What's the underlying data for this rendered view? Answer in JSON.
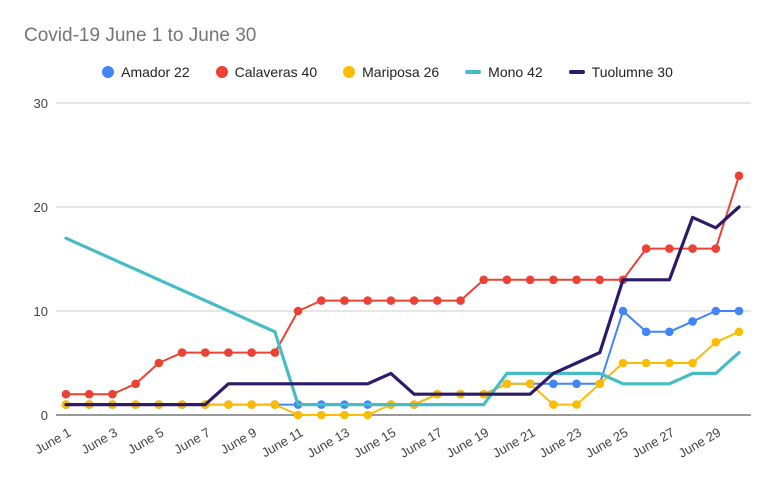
{
  "chart_data": {
    "type": "line",
    "title": "Covid-19 June 1 to June 30",
    "xlabel": "",
    "ylabel": "",
    "ylim": [
      0,
      30
    ],
    "yticks": [
      "0",
      "10",
      "20",
      "30"
    ],
    "grid": true,
    "legend_position": "top",
    "x": [
      "June 1",
      "June 2",
      "June 3",
      "June 4",
      "June 5",
      "June 6",
      "June 7",
      "June 8",
      "June 9",
      "June 10",
      "June 11",
      "June 12",
      "June 13",
      "June 14",
      "June 15",
      "June 16",
      "June 17",
      "June 18",
      "June 19",
      "June 20",
      "June 21",
      "June 22",
      "June 23",
      "June 24",
      "June 25",
      "June 26",
      "June 27",
      "June 28",
      "June 29",
      "June 30"
    ],
    "xtick_labels": [
      "June 1",
      "June 3",
      "June 5",
      "June 7",
      "June 9",
      "June 11",
      "June 13",
      "June 15",
      "June 17",
      "June 19",
      "June 21",
      "June 23",
      "June 25",
      "June 27",
      "June 29"
    ],
    "series": [
      {
        "name": "Amador 22",
        "color": "#4285f4",
        "markers": true,
        "values": [
          1,
          1,
          1,
          1,
          1,
          1,
          1,
          1,
          1,
          1,
          1,
          1,
          1,
          1,
          1,
          1,
          2,
          2,
          2,
          3,
          3,
          3,
          3,
          3,
          10,
          8,
          8,
          9,
          10,
          10
        ]
      },
      {
        "name": "Calaveras 40",
        "color": "#ea4335",
        "markers": true,
        "values": [
          2,
          2,
          2,
          3,
          5,
          6,
          6,
          6,
          6,
          6,
          10,
          11,
          11,
          11,
          11,
          11,
          11,
          11,
          13,
          13,
          13,
          13,
          13,
          13,
          13,
          16,
          16,
          16,
          16,
          23
        ]
      },
      {
        "name": "Mariposa 26",
        "color": "#fbbc04",
        "markers": true,
        "values": [
          1,
          1,
          1,
          1,
          1,
          1,
          1,
          1,
          1,
          1,
          0,
          0,
          0,
          0,
          1,
          1,
          2,
          2,
          2,
          3,
          3,
          1,
          1,
          3,
          5,
          5,
          5,
          5,
          7,
          8
        ]
      },
      {
        "name": "Mono 42",
        "color": "#46bdc6",
        "markers": false,
        "values": [
          17,
          null,
          null,
          null,
          null,
          null,
          null,
          null,
          null,
          8,
          1,
          1,
          1,
          1,
          1,
          1,
          1,
          1,
          1,
          4,
          4,
          4,
          4,
          4,
          3,
          3,
          3,
          4,
          4,
          6
        ]
      },
      {
        "name": "Tuolumne 30",
        "color": "#2d1b69",
        "markers": false,
        "values": [
          1,
          1,
          1,
          1,
          1,
          1,
          1,
          3,
          3,
          3,
          3,
          3,
          3,
          3,
          4,
          2,
          2,
          2,
          2,
          2,
          2,
          4,
          5,
          6,
          13,
          13,
          13,
          19,
          18,
          20
        ]
      }
    ]
  }
}
